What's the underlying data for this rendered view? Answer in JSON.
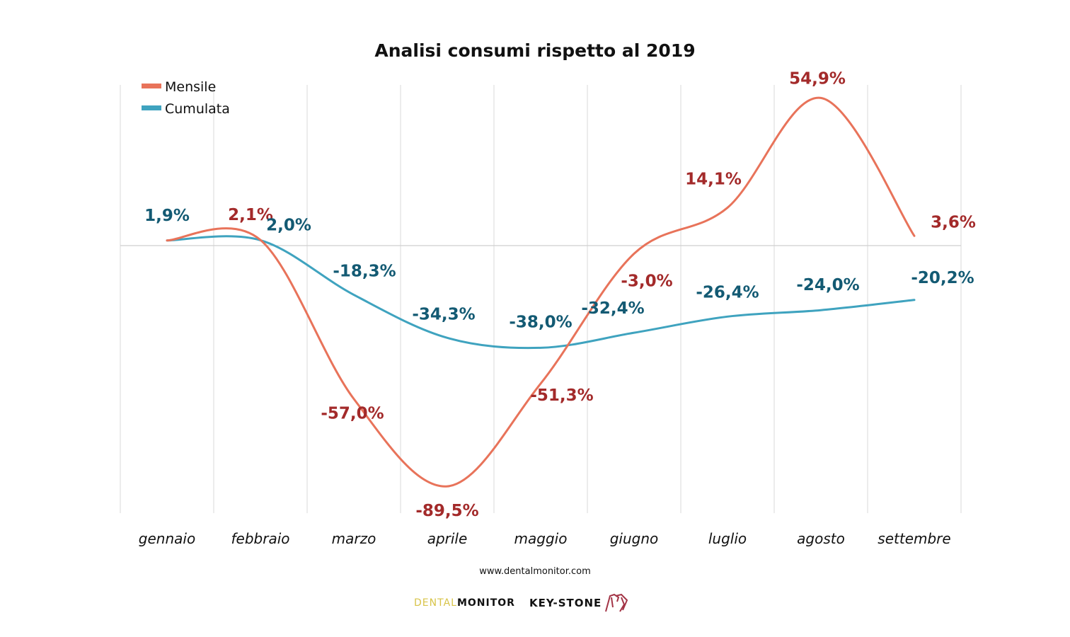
{
  "chart_data": {
    "type": "line",
    "title": "Analisi consumi rispetto al 2019",
    "xlabel": "",
    "ylabel": "",
    "categories": [
      "gennaio",
      "febbraio",
      "marzo",
      "aprile",
      "maggio",
      "giugno",
      "luglio",
      "agosto",
      "settembre"
    ],
    "series": [
      {
        "name": "Mensile",
        "color": "#E8735A",
        "label_color": "#A32A2A",
        "values": [
          1.9,
          2.1,
          -57.0,
          -89.5,
          -51.3,
          -3.0,
          14.1,
          54.9,
          3.6
        ],
        "labels": [
          "",
          "2,1%",
          "-57,0%",
          "-89,5%",
          "-51,3%",
          "-3,0%",
          "14,1%",
          "54,9%",
          "3,6%"
        ]
      },
      {
        "name": "Cumulata",
        "color": "#3FA3BF",
        "label_color": "#135A73",
        "values": [
          1.9,
          2.0,
          -18.3,
          -34.3,
          -38.0,
          -32.4,
          -26.4,
          -24.0,
          -20.2
        ],
        "labels": [
          "1,9%",
          "2,0%",
          "-18,3%",
          "-34,3%",
          "-38,0%",
          "-32,4%",
          "-26,4%",
          "-24,0%",
          "-20,2%"
        ]
      }
    ],
    "ylim": [
      -100,
      60
    ],
    "grid": "vertical",
    "legend": "top-left",
    "smooth": true
  },
  "footer": {
    "url": "www.dentalmonitor.com",
    "logo_dental_light": "DENTAL",
    "logo_dental_bold": "MONITOR",
    "logo_keystone": "KEY-STONE"
  }
}
